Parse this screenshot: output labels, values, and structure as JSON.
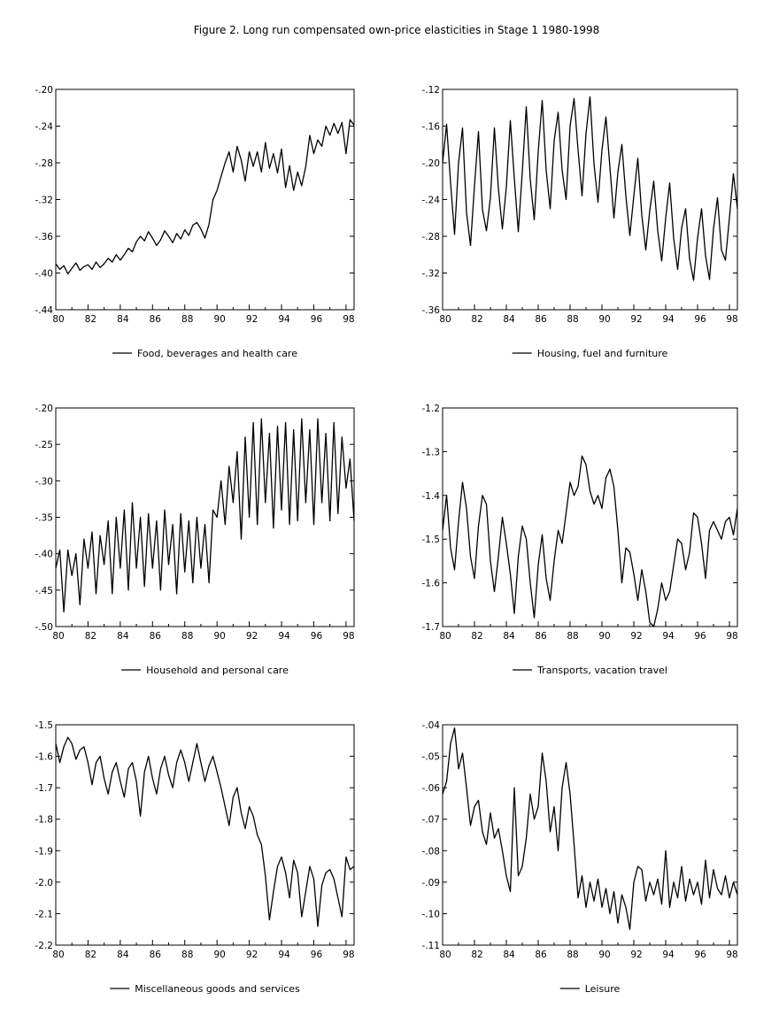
{
  "figure_title": "Figure 2. Long run compensated own-price elasticities in Stage 1 1980-1998",
  "chart_data": [
    {
      "type": "line",
      "legend": "Food, beverages and health care",
      "x_tick_labels": [
        "80",
        "82",
        "84",
        "86",
        "88",
        "90",
        "92",
        "94",
        "96",
        "98"
      ],
      "x_range": [
        1980,
        1998.5
      ],
      "y_tick_labels": [
        "-.20",
        "-.24",
        "-.28",
        "-.32",
        "-.36",
        "-.40",
        "-.44"
      ],
      "ylim": [
        -0.44,
        -0.2
      ],
      "series": [
        {
          "x_start": 1980,
          "x_step": 0.25,
          "values": [
            -0.39,
            -0.396,
            -0.392,
            -0.401,
            -0.395,
            -0.389,
            -0.397,
            -0.393,
            -0.391,
            -0.396,
            -0.388,
            -0.394,
            -0.39,
            -0.384,
            -0.388,
            -0.38,
            -0.386,
            -0.38,
            -0.373,
            -0.377,
            -0.366,
            -0.36,
            -0.365,
            -0.355,
            -0.362,
            -0.37,
            -0.364,
            -0.354,
            -0.36,
            -0.367,
            -0.357,
            -0.363,
            -0.353,
            -0.359,
            -0.348,
            -0.345,
            -0.352,
            -0.362,
            -0.347,
            -0.32,
            -0.31,
            -0.295,
            -0.28,
            -0.268,
            -0.29,
            -0.262,
            -0.277,
            -0.3,
            -0.268,
            -0.284,
            -0.268,
            -0.29,
            -0.258,
            -0.286,
            -0.27,
            -0.291,
            -0.265,
            -0.307,
            -0.283,
            -0.31,
            -0.29,
            -0.305,
            -0.284,
            -0.25,
            -0.27,
            -0.255,
            -0.262,
            -0.24,
            -0.25,
            -0.237,
            -0.248,
            -0.236,
            -0.27,
            -0.233,
            -0.239
          ]
        }
      ]
    },
    {
      "type": "line",
      "legend": "Housing, fuel and furniture",
      "x_tick_labels": [
        "80",
        "82",
        "84",
        "86",
        "88",
        "90",
        "92",
        "94",
        "96",
        "98"
      ],
      "x_range": [
        1980,
        1998.5
      ],
      "y_tick_labels": [
        "-.12",
        "-.16",
        "-.20",
        "-.24",
        "-.28",
        "-.32",
        "-.36"
      ],
      "ylim": [
        -0.36,
        -0.12
      ],
      "series": [
        {
          "x_start": 1980,
          "x_step": 0.25,
          "values": [
            -0.2,
            -0.158,
            -0.222,
            -0.278,
            -0.2,
            -0.162,
            -0.254,
            -0.29,
            -0.225,
            -0.166,
            -0.251,
            -0.274,
            -0.238,
            -0.162,
            -0.228,
            -0.272,
            -0.226,
            -0.154,
            -0.217,
            -0.275,
            -0.21,
            -0.139,
            -0.218,
            -0.262,
            -0.188,
            -0.132,
            -0.208,
            -0.25,
            -0.176,
            -0.145,
            -0.208,
            -0.24,
            -0.16,
            -0.13,
            -0.186,
            -0.236,
            -0.168,
            -0.128,
            -0.201,
            -0.243,
            -0.186,
            -0.15,
            -0.205,
            -0.26,
            -0.21,
            -0.18,
            -0.236,
            -0.279,
            -0.236,
            -0.195,
            -0.257,
            -0.295,
            -0.252,
            -0.22,
            -0.274,
            -0.307,
            -0.26,
            -0.222,
            -0.282,
            -0.316,
            -0.271,
            -0.25,
            -0.305,
            -0.328,
            -0.282,
            -0.25,
            -0.301,
            -0.327,
            -0.272,
            -0.238,
            -0.295,
            -0.306,
            -0.26,
            -0.212,
            -0.25
          ]
        }
      ]
    },
    {
      "type": "line",
      "legend": "Household and personal care",
      "x_tick_labels": [
        "80",
        "82",
        "84",
        "86",
        "88",
        "90",
        "92",
        "94",
        "96",
        "98"
      ],
      "x_range": [
        1980,
        1998.5
      ],
      "y_tick_labels": [
        "-.20",
        "-.25",
        "-.30",
        "-.35",
        "-.40",
        "-.45",
        "-.50"
      ],
      "ylim": [
        -0.5,
        -0.2
      ],
      "series": [
        {
          "x_start": 1980,
          "x_step": 0.25,
          "values": [
            -0.42,
            -0.395,
            -0.48,
            -0.395,
            -0.43,
            -0.4,
            -0.47,
            -0.38,
            -0.42,
            -0.37,
            -0.455,
            -0.375,
            -0.415,
            -0.355,
            -0.455,
            -0.35,
            -0.42,
            -0.34,
            -0.45,
            -0.33,
            -0.42,
            -0.35,
            -0.445,
            -0.345,
            -0.42,
            -0.355,
            -0.45,
            -0.34,
            -0.415,
            -0.36,
            -0.455,
            -0.345,
            -0.425,
            -0.355,
            -0.44,
            -0.35,
            -0.42,
            -0.36,
            -0.44,
            -0.34,
            -0.35,
            -0.3,
            -0.36,
            -0.28,
            -0.33,
            -0.26,
            -0.38,
            -0.24,
            -0.35,
            -0.22,
            -0.36,
            -0.215,
            -0.33,
            -0.235,
            -0.365,
            -0.225,
            -0.34,
            -0.22,
            -0.36,
            -0.23,
            -0.355,
            -0.215,
            -0.33,
            -0.23,
            -0.36,
            -0.215,
            -0.33,
            -0.235,
            -0.355,
            -0.22,
            -0.345,
            -0.24,
            -0.31,
            -0.27,
            -0.355
          ]
        }
      ]
    },
    {
      "type": "line",
      "legend": "Transports, vacation travel",
      "x_tick_labels": [
        "80",
        "82",
        "84",
        "86",
        "88",
        "90",
        "92",
        "94",
        "96",
        "98"
      ],
      "x_range": [
        1980,
        1998.5
      ],
      "y_tick_labels": [
        "-1.2",
        "-1.3",
        "-1.4",
        "-1.5",
        "-1.6",
        "-1.7"
      ],
      "ylim": [
        -1.7,
        -1.2
      ],
      "series": [
        {
          "x_start": 1980,
          "x_step": 0.25,
          "values": [
            -1.48,
            -1.4,
            -1.52,
            -1.57,
            -1.46,
            -1.37,
            -1.43,
            -1.54,
            -1.59,
            -1.47,
            -1.4,
            -1.42,
            -1.55,
            -1.62,
            -1.54,
            -1.45,
            -1.51,
            -1.58,
            -1.67,
            -1.54,
            -1.47,
            -1.5,
            -1.6,
            -1.68,
            -1.56,
            -1.49,
            -1.59,
            -1.64,
            -1.55,
            -1.48,
            -1.51,
            -1.44,
            -1.37,
            -1.4,
            -1.38,
            -1.31,
            -1.33,
            -1.39,
            -1.42,
            -1.4,
            -1.43,
            -1.36,
            -1.34,
            -1.38,
            -1.48,
            -1.6,
            -1.52,
            -1.53,
            -1.58,
            -1.64,
            -1.57,
            -1.62,
            -1.69,
            -1.7,
            -1.66,
            -1.6,
            -1.64,
            -1.62,
            -1.56,
            -1.5,
            -1.51,
            -1.57,
            -1.53,
            -1.44,
            -1.45,
            -1.51,
            -1.59,
            -1.48,
            -1.46,
            -1.48,
            -1.5,
            -1.46,
            -1.45,
            -1.49,
            -1.43
          ]
        }
      ]
    },
    {
      "type": "line",
      "legend": "Miscellaneous goods and services",
      "x_tick_labels": [
        "80",
        "82",
        "84",
        "86",
        "88",
        "90",
        "92",
        "94",
        "96",
        "98"
      ],
      "x_range": [
        1980,
        1998.5
      ],
      "y_tick_labels": [
        "-1.5",
        "-1.6",
        "-1.7",
        "-1.8",
        "-1.9",
        "-2.0",
        "-2.1",
        "-2.2"
      ],
      "ylim": [
        -2.2,
        -1.5
      ],
      "series": [
        {
          "x_start": 1980,
          "x_step": 0.25,
          "values": [
            -1.56,
            -1.62,
            -1.57,
            -1.54,
            -1.56,
            -1.61,
            -1.58,
            -1.57,
            -1.62,
            -1.69,
            -1.62,
            -1.6,
            -1.67,
            -1.72,
            -1.65,
            -1.62,
            -1.68,
            -1.73,
            -1.64,
            -1.62,
            -1.68,
            -1.79,
            -1.65,
            -1.6,
            -1.67,
            -1.72,
            -1.64,
            -1.6,
            -1.66,
            -1.7,
            -1.62,
            -1.58,
            -1.62,
            -1.68,
            -1.62,
            -1.56,
            -1.62,
            -1.68,
            -1.63,
            -1.6,
            -1.65,
            -1.7,
            -1.76,
            -1.82,
            -1.73,
            -1.7,
            -1.78,
            -1.83,
            -1.76,
            -1.79,
            -1.85,
            -1.88,
            -1.98,
            -2.12,
            -2.03,
            -1.95,
            -1.92,
            -1.97,
            -2.05,
            -1.93,
            -1.97,
            -2.11,
            -2.03,
            -1.95,
            -1.99,
            -2.14,
            -2.01,
            -1.97,
            -1.96,
            -1.99,
            -2.05,
            -2.11,
            -1.92,
            -1.96,
            -1.95
          ]
        }
      ]
    },
    {
      "type": "line",
      "legend": "Leisure",
      "x_tick_labels": [
        "80",
        "82",
        "84",
        "86",
        "88",
        "90",
        "92",
        "94",
        "96",
        "98"
      ],
      "x_range": [
        1980,
        1998.5
      ],
      "y_tick_labels": [
        "-.04",
        "-.05",
        "-.06",
        "-.07",
        "-.08",
        "-.09",
        "-.10",
        "-.11"
      ],
      "ylim": [
        -0.11,
        -0.04
      ],
      "series": [
        {
          "x_start": 1980,
          "x_step": 0.25,
          "values": [
            -0.062,
            -0.058,
            -0.046,
            -0.041,
            -0.054,
            -0.049,
            -0.06,
            -0.072,
            -0.066,
            -0.064,
            -0.074,
            -0.078,
            -0.068,
            -0.076,
            -0.073,
            -0.08,
            -0.088,
            -0.093,
            -0.06,
            -0.088,
            -0.085,
            -0.076,
            -0.062,
            -0.07,
            -0.066,
            -0.049,
            -0.058,
            -0.074,
            -0.066,
            -0.08,
            -0.06,
            -0.052,
            -0.062,
            -0.078,
            -0.095,
            -0.088,
            -0.098,
            -0.09,
            -0.096,
            -0.089,
            -0.098,
            -0.092,
            -0.1,
            -0.093,
            -0.103,
            -0.094,
            -0.098,
            -0.105,
            -0.09,
            -0.085,
            -0.086,
            -0.096,
            -0.09,
            -0.094,
            -0.089,
            -0.097,
            -0.08,
            -0.098,
            -0.09,
            -0.095,
            -0.085,
            -0.096,
            -0.089,
            -0.094,
            -0.09,
            -0.097,
            -0.083,
            -0.095,
            -0.086,
            -0.092,
            -0.094,
            -0.088,
            -0.095,
            -0.09,
            -0.094
          ]
        }
      ]
    }
  ]
}
